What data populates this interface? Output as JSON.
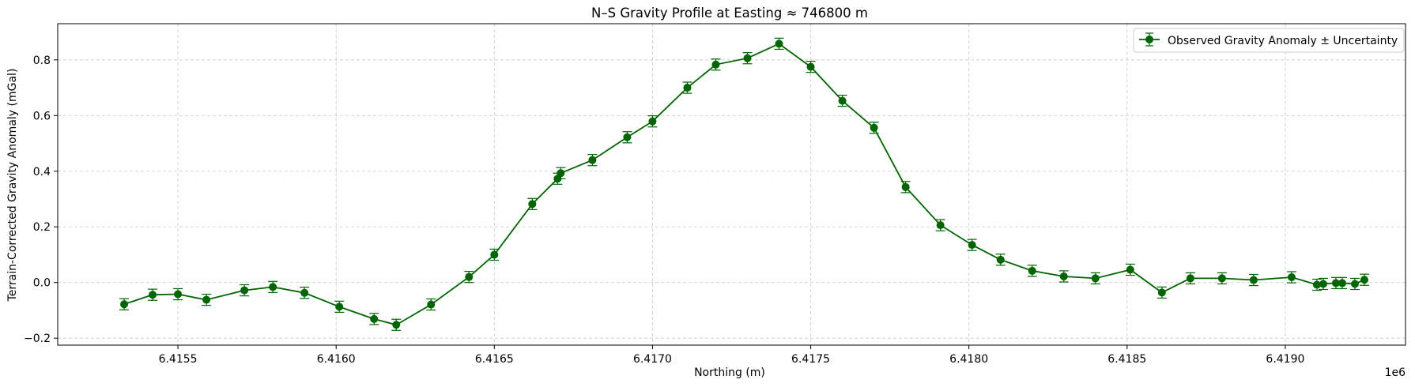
{
  "chart_data": {
    "type": "line",
    "title": "N–S Gravity Profile at Easting ≈ 746800 m",
    "xlabel": "Northing (m)",
    "ylabel": "Terrain-Corrected Gravity Anomaly (mGal)",
    "x_offset_label": "1e6",
    "xlim": [
      6415120,
      6419380
    ],
    "ylim": [
      -0.225,
      0.93
    ],
    "x_ticks": [
      6415500,
      6416000,
      6416500,
      6417000,
      6417500,
      6418000,
      6418500,
      6419000
    ],
    "x_tick_labels": [
      "6.4155",
      "6.4160",
      "6.4165",
      "6.4170",
      "6.4175",
      "6.4180",
      "6.4185",
      "6.4190"
    ],
    "y_ticks": [
      -0.2,
      0.0,
      0.2,
      0.4,
      0.6,
      0.8
    ],
    "y_tick_labels": [
      "−0.2",
      "0.0",
      "0.2",
      "0.4",
      "0.6",
      "0.8"
    ],
    "grid": true,
    "legend_position": "top-right",
    "color": "#006400",
    "series": [
      {
        "name": "Observed Gravity Anomaly ± Uncertainty",
        "x": [
          6415330,
          6415420,
          6415500,
          6415590,
          6415710,
          6415800,
          6415900,
          6416010,
          6416120,
          6416190,
          6416300,
          6416420,
          6416500,
          6416620,
          6416700,
          6416710,
          6416810,
          6416920,
          6417000,
          6417110,
          6417200,
          6417300,
          6417400,
          6417500,
          6417600,
          6417700,
          6417800,
          6417910,
          6418010,
          6418100,
          6418200,
          6418300,
          6418400,
          6418510,
          6418610,
          6418700,
          6418800,
          6418900,
          6419020,
          6419100,
          6419120,
          6419160,
          6419180,
          6419220,
          6419250
        ],
        "y": [
          -0.078,
          -0.044,
          -0.042,
          -0.062,
          -0.028,
          -0.016,
          -0.037,
          -0.087,
          -0.131,
          -0.152,
          -0.079,
          0.02,
          0.1,
          0.282,
          0.373,
          0.393,
          0.44,
          0.522,
          0.579,
          0.7,
          0.783,
          0.806,
          0.858,
          0.775,
          0.653,
          0.556,
          0.343,
          0.206,
          0.135,
          0.082,
          0.042,
          0.022,
          0.015,
          0.046,
          -0.036,
          0.015,
          0.015,
          0.009,
          0.019,
          -0.008,
          -0.005,
          -0.002,
          -0.002,
          -0.005,
          0.01
        ],
        "err": [
          0.02,
          0.02,
          0.02,
          0.02,
          0.02,
          0.02,
          0.02,
          0.02,
          0.02,
          0.02,
          0.02,
          0.02,
          0.02,
          0.02,
          0.02,
          0.02,
          0.02,
          0.02,
          0.02,
          0.02,
          0.02,
          0.02,
          0.02,
          0.02,
          0.02,
          0.02,
          0.02,
          0.02,
          0.02,
          0.02,
          0.02,
          0.02,
          0.02,
          0.02,
          0.02,
          0.02,
          0.02,
          0.02,
          0.02,
          0.02,
          0.02,
          0.02,
          0.02,
          0.02,
          0.02
        ]
      }
    ]
  }
}
